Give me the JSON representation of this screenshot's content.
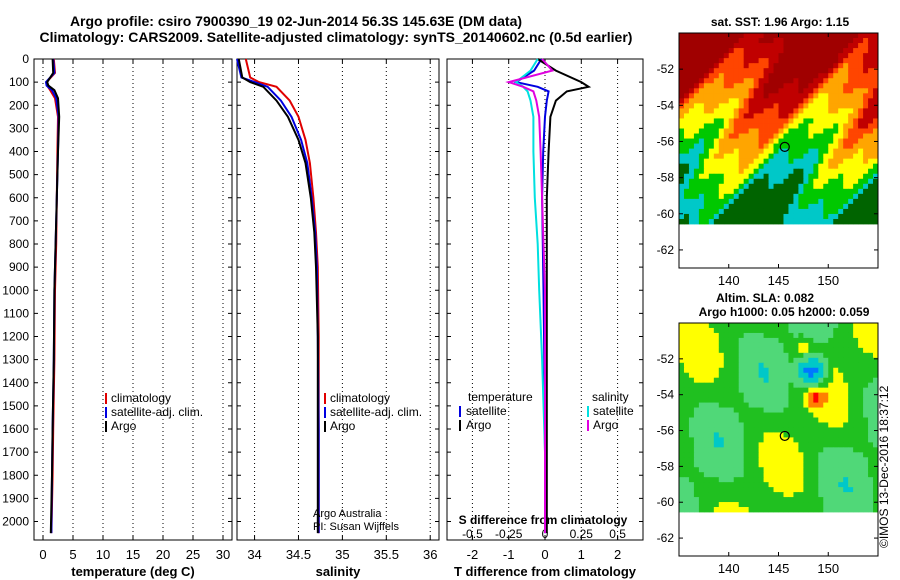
{
  "header": {
    "title_line1": "Argo profile: csiro 7900390_19 02-Jun-2014 56.3S 145.63E (DM data)",
    "title_line2": "Climatology: CARS2009. Satellite-adjusted climatology: synTS_20140602.nc (0.5d earlier)"
  },
  "colors": {
    "climatology": "#e00000",
    "satellite": "#0000e0",
    "argo": "#000000",
    "sal_satellite": "#00e0e0",
    "sal_argo": "#e000e0"
  },
  "shared_axis": {
    "depth_ticks": [
      0,
      100,
      200,
      300,
      400,
      500,
      600,
      700,
      800,
      900,
      1000,
      1100,
      1200,
      1300,
      1400,
      1500,
      1600,
      1700,
      1800,
      1900,
      2000
    ],
    "depth_range": [
      0,
      2080
    ]
  },
  "chart_data": [
    {
      "type": "line",
      "xlabel": "temperature (deg C)",
      "xlim": [
        -1.5,
        31.5
      ],
      "xticks": [
        0,
        5,
        10,
        15,
        20,
        25,
        30
      ],
      "legend": {
        "entries": [
          "climatology",
          "satellite-adj. clim.",
          "Argo"
        ]
      },
      "series": [
        {
          "name": "climatology",
          "color": "#e00000",
          "x": [
            1.8,
            2.0,
            0.6,
            0.7,
            1.2,
            2.0,
            2.5,
            2.4,
            2.3,
            2.2,
            2.0,
            1.9,
            1.7,
            1.6,
            1.4
          ],
          "y": [
            0,
            60,
            100,
            115,
            135,
            170,
            250,
            400,
            600,
            800,
            1000,
            1300,
            1600,
            1800,
            2050
          ]
        },
        {
          "name": "satellite-adj. clim.",
          "color": "#0000e0",
          "x": [
            1.7,
            1.9,
            0.5,
            0.6,
            1.5,
            2.2,
            2.6,
            2.5,
            2.3,
            2.1,
            1.9,
            1.8,
            1.6,
            1.5,
            1.4
          ],
          "y": [
            0,
            60,
            100,
            115,
            135,
            170,
            250,
            400,
            600,
            800,
            1000,
            1300,
            1600,
            1800,
            2050
          ]
        },
        {
          "name": "Argo",
          "color": "#000000",
          "x": [
            1.6,
            1.7,
            0.7,
            0.9,
            1.9,
            2.5,
            2.7,
            2.5,
            2.3,
            2.1,
            1.9,
            1.8,
            1.6,
            1.5,
            1.3
          ],
          "y": [
            0,
            60,
            100,
            115,
            135,
            170,
            250,
            400,
            600,
            800,
            1000,
            1300,
            1600,
            1800,
            2050
          ]
        }
      ]
    },
    {
      "type": "line",
      "xlabel": "salinity",
      "xlim": [
        33.8,
        36.1
      ],
      "xticks": [
        34,
        34.5,
        35,
        35.5,
        36
      ],
      "xtick_labels": [
        "34",
        "34.5",
        "35",
        "35.5",
        "36"
      ],
      "legend": {
        "entries": [
          "climatology",
          "satellite-adj. clim.",
          "Argo"
        ]
      },
      "credits": [
        "Argo Australia",
        "PI: Susan Wijffels"
      ],
      "series": [
        {
          "name": "climatology",
          "color": "#e00000",
          "x": [
            33.9,
            33.95,
            34.05,
            34.25,
            34.4,
            34.5,
            34.58,
            34.63,
            34.67,
            34.7,
            34.72,
            34.73,
            34.73,
            34.73
          ],
          "y": [
            0,
            80,
            100,
            120,
            180,
            250,
            350,
            450,
            600,
            750,
            900,
            1200,
            1600,
            2050
          ]
        },
        {
          "name": "satellite-adj. clim.",
          "color": "#0000e0",
          "x": [
            33.8,
            33.85,
            34.0,
            34.15,
            34.3,
            34.42,
            34.53,
            34.6,
            34.65,
            34.69,
            34.71,
            34.72,
            34.73,
            34.73
          ],
          "y": [
            0,
            80,
            100,
            120,
            180,
            250,
            350,
            450,
            600,
            750,
            900,
            1200,
            1600,
            2050
          ]
        },
        {
          "name": "Argo",
          "color": "#000000",
          "x": [
            33.82,
            33.86,
            33.95,
            34.1,
            34.25,
            34.38,
            34.5,
            34.58,
            34.64,
            34.68,
            34.7,
            34.72,
            34.72,
            34.72
          ],
          "y": [
            0,
            80,
            100,
            120,
            180,
            250,
            350,
            450,
            600,
            750,
            900,
            1200,
            1600,
            2050
          ]
        }
      ]
    },
    {
      "type": "line",
      "xlabel": "T difference from climatology",
      "xlim": [
        -2.7,
        2.7
      ],
      "xticks": [
        -2,
        -1,
        0,
        1,
        2
      ],
      "xtick_labels": [
        "-2",
        "-1",
        "0",
        "1",
        "2"
      ],
      "secondary_axis": {
        "label": "S difference from climatology",
        "ticks": [
          -0.5,
          -0.25,
          0,
          0.25,
          0.5
        ],
        "tick_labels": [
          "-0.5",
          "-0.25",
          "0",
          "0.25",
          "0.5"
        ],
        "range": [
          -0.675,
          0.675
        ]
      },
      "legend": {
        "temperature_title": "temperature",
        "salinity_title": "salinity",
        "temperature_entries": [
          "satellite",
          "Argo"
        ],
        "salinity_entries": [
          "satellite",
          "Argo"
        ]
      },
      "series": [
        {
          "name": "satellite",
          "group": "temperature",
          "color": "#0000e0",
          "x": [
            -0.1,
            -0.3,
            -0.8,
            -0.2,
            0.1,
            0.05,
            0.0,
            -0.05,
            -0.08,
            -0.06,
            -0.04,
            -0.02,
            0.0,
            0.0
          ],
          "y": [
            0,
            50,
            100,
            120,
            140,
            180,
            250,
            400,
            600,
            800,
            1000,
            1300,
            1700,
            2050
          ]
        },
        {
          "name": "Argo",
          "group": "temperature",
          "color": "#000000",
          "x": [
            -0.2,
            0.3,
            1.0,
            1.2,
            0.6,
            0.3,
            0.15,
            0.1,
            0.05,
            0.05,
            0.05,
            0.05,
            0.05,
            0.05
          ],
          "y": [
            0,
            50,
            100,
            120,
            140,
            180,
            250,
            400,
            600,
            800,
            1000,
            1300,
            1700,
            2050
          ]
        },
        {
          "name": "satellite",
          "group": "salinity",
          "color": "#00e0e0",
          "x": [
            -0.05,
            -0.1,
            -0.2,
            -0.15,
            -0.12,
            -0.1,
            -0.08,
            -0.08,
            -0.07,
            -0.05,
            -0.04,
            -0.02,
            0.0,
            0.0
          ],
          "y": [
            0,
            50,
            100,
            120,
            140,
            180,
            250,
            400,
            600,
            800,
            1000,
            1300,
            1700,
            2050
          ]
        },
        {
          "name": "Argo",
          "group": "salinity",
          "color": "#e000e0",
          "x": [
            -0.02,
            0.05,
            -0.25,
            -0.15,
            -0.08,
            -0.06,
            -0.04,
            -0.03,
            -0.02,
            -0.01,
            0.0,
            0.0,
            0.0,
            0.0
          ],
          "y": [
            0,
            50,
            100,
            120,
            140,
            180,
            250,
            400,
            600,
            800,
            1000,
            1300,
            1700,
            2050
          ]
        }
      ]
    },
    {
      "type": "heatmap",
      "title": "sat. SST: 1.96 Argo: 1.15",
      "xlim": [
        135,
        155
      ],
      "ylim": [
        -63,
        -50
      ],
      "xticks": [
        140,
        145,
        150
      ],
      "yticks": [
        -52,
        -54,
        -56,
        -58,
        -60,
        -62
      ],
      "ytick_labels": [
        "-52",
        "-54",
        "-56",
        "-58",
        "-60",
        "-62"
      ],
      "marker": {
        "lon": 145.63,
        "lat": -56.3
      },
      "colormap": [
        "#006400",
        "#00c8c8",
        "#00c800",
        "#ffff00",
        "#ffa500",
        "#ff4500",
        "#c00000",
        "#a00000"
      ]
    },
    {
      "type": "heatmap",
      "title": "Altim. SLA: 0.082",
      "subtitle": "Argo h1000: 0.05 h2000: 0.059",
      "xlim": [
        135,
        155
      ],
      "ylim": [
        -63,
        -50
      ],
      "xticks": [
        140,
        145,
        150
      ],
      "yticks": [
        -52,
        -54,
        -56,
        -58,
        -60,
        -62
      ],
      "ytick_labels": [
        "-52",
        "-54",
        "-56",
        "-58",
        "-60",
        "-62"
      ],
      "marker": {
        "lon": 145.63,
        "lat": -56.3
      },
      "colormap": [
        "#0000b0",
        "#0078ff",
        "#00c8c8",
        "#50d878",
        "#20c020",
        "#ffff00",
        "#ff8000",
        "#ff0000"
      ]
    }
  ],
  "footer": {
    "stamp": "©IMOS 13-Dec-2016 18:37:12"
  }
}
